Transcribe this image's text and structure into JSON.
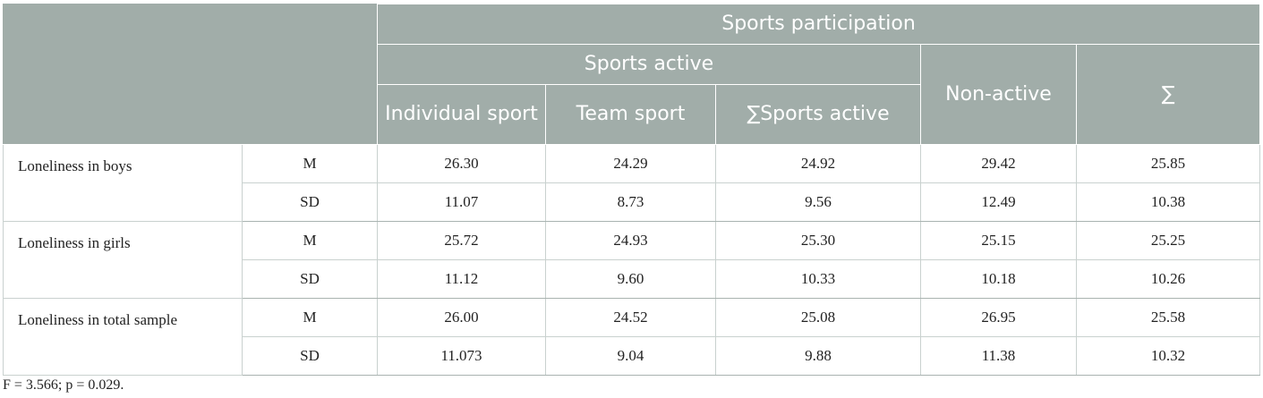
{
  "header": {
    "sports_participation": "Sports participation",
    "sports_active": "Sports active",
    "individual_sport": "Individual sport",
    "team_sport": "Team sport",
    "sum_sports_active": "∑Sports active",
    "non_active": "Non-active",
    "sum": "∑"
  },
  "rows": [
    {
      "label": "Loneliness in boys",
      "stats": [
        {
          "stat": "M",
          "values": [
            "26.30",
            "24.29",
            "24.92",
            "29.42",
            "25.85"
          ]
        },
        {
          "stat": "SD",
          "values": [
            "11.07",
            "8.73",
            "9.56",
            "12.49",
            "10.38"
          ]
        }
      ]
    },
    {
      "label": "Loneliness in girls",
      "stats": [
        {
          "stat": "M",
          "values": [
            "25.72",
            "24.93",
            "25.30",
            "25.15",
            "25.25"
          ]
        },
        {
          "stat": "SD",
          "values": [
            "11.12",
            "9.60",
            "10.33",
            "10.18",
            "10.26"
          ]
        }
      ]
    },
    {
      "label": "Loneliness in total sample",
      "stats": [
        {
          "stat": "M",
          "values": [
            "26.00",
            "24.52",
            "25.08",
            "26.95",
            "25.58"
          ]
        },
        {
          "stat": "SD",
          "values": [
            "11.073",
            "9.04",
            "9.88",
            "11.38",
            "10.32"
          ]
        }
      ]
    }
  ],
  "footnote": "F = 3.566; p = 0.029."
}
